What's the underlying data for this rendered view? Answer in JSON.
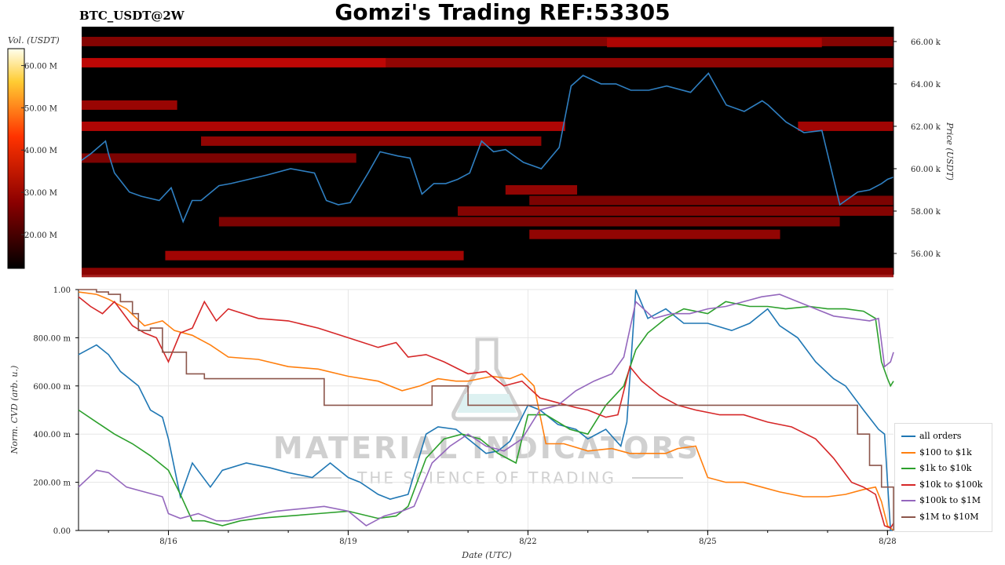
{
  "title": "Gomzi's Trading REF:53305",
  "pair_label": "BTC_USDT@2W",
  "watermark": {
    "brand": "MATERIAL INDICATORS",
    "tagline": "THE SCIENCE OF TRADING",
    "icon": "flask-icon"
  },
  "chart_data": [
    {
      "type": "heatmap",
      "name": "orderbook-liquidity",
      "colorbar": {
        "label": "Vol. (USDT)",
        "ticks": [
          "60.00 M",
          "50.00 M",
          "40.00 M",
          "30.00 M",
          "20.00 M"
        ],
        "tick_values": [
          60,
          50,
          40,
          30,
          20
        ],
        "range": [
          12,
          64
        ],
        "colormap": [
          "#000000",
          "#8b0000",
          "#ff3300",
          "#ffcc33",
          "#ffffee"
        ]
      },
      "ylabel": "Price (USDT)",
      "ylim": [
        55000,
        66700
      ],
      "yticks": [
        "66.00 k",
        "64.00 k",
        "62.00 k",
        "60.00 k",
        "58.00 k",
        "56.00 k"
      ],
      "ytick_values": [
        66000,
        64000,
        62000,
        60000,
        58000,
        56000
      ],
      "xlim_days": [
        14.5,
        28.1
      ],
      "liquidity_bands": [
        {
          "price": 66000,
          "x_from": 14.5,
          "x_to": 28.1,
          "intensity": 0.35
        },
        {
          "price": 65950,
          "x_from": 23.3,
          "x_to": 26.9,
          "intensity": 0.55
        },
        {
          "price": 65000,
          "x_from": 14.5,
          "x_to": 19.6,
          "intensity": 0.75
        },
        {
          "price": 65000,
          "x_from": 19.6,
          "x_to": 28.1,
          "intensity": 0.45
        },
        {
          "price": 63000,
          "x_from": 14.5,
          "x_to": 16.1,
          "intensity": 0.5
        },
        {
          "price": 62000,
          "x_from": 14.5,
          "x_to": 22.6,
          "intensity": 0.65
        },
        {
          "price": 62000,
          "x_from": 26.5,
          "x_to": 28.1,
          "intensity": 0.55
        },
        {
          "price": 61300,
          "x_from": 16.5,
          "x_to": 22.2,
          "intensity": 0.45
        },
        {
          "price": 60500,
          "x_from": 14.5,
          "x_to": 19.1,
          "intensity": 0.3
        },
        {
          "price": 59000,
          "x_from": 21.6,
          "x_to": 22.8,
          "intensity": 0.45
        },
        {
          "price": 58500,
          "x_from": 22.0,
          "x_to": 28.1,
          "intensity": 0.3
        },
        {
          "price": 58000,
          "x_from": 20.8,
          "x_to": 28.1,
          "intensity": 0.35
        },
        {
          "price": 57500,
          "x_from": 16.8,
          "x_to": 27.2,
          "intensity": 0.3
        },
        {
          "price": 56900,
          "x_from": 22.0,
          "x_to": 26.2,
          "intensity": 0.45
        },
        {
          "price": 55900,
          "x_from": 15.9,
          "x_to": 20.9,
          "intensity": 0.55
        },
        {
          "price": 55100,
          "x_from": 14.5,
          "x_to": 28.1,
          "intensity": 0.4
        }
      ],
      "price_series": {
        "name": "BTC price",
        "color": "#2f7fc1",
        "x": [
          14.5,
          14.65,
          14.9,
          14.95,
          15.05,
          15.3,
          15.5,
          15.8,
          16.0,
          16.2,
          16.35,
          16.5,
          16.8,
          17.0,
          17.3,
          17.6,
          18.0,
          18.4,
          18.6,
          18.8,
          19.0,
          19.3,
          19.5,
          19.8,
          20.0,
          20.2,
          20.4,
          20.6,
          20.8,
          21.0,
          21.2,
          21.4,
          21.6,
          21.9,
          22.2,
          22.5,
          22.7,
          22.9,
          23.2,
          23.45,
          23.7,
          24.0,
          24.3,
          24.7,
          25.0,
          25.3,
          25.6,
          25.9,
          26.0,
          26.3,
          26.6,
          26.9,
          27.2,
          27.5,
          27.7,
          27.9,
          28.0,
          28.1
        ],
        "y": [
          60400,
          60700,
          61300,
          60700,
          59800,
          58900,
          58700,
          58500,
          59100,
          57500,
          58500,
          58500,
          59200,
          59300,
          59500,
          59700,
          60000,
          59800,
          58500,
          58300,
          58400,
          59800,
          60800,
          60600,
          60500,
          58800,
          59300,
          59300,
          59500,
          59800,
          61300,
          60800,
          60900,
          60300,
          60000,
          61000,
          63900,
          64400,
          64000,
          64000,
          63700,
          63700,
          63900,
          63600,
          64500,
          63000,
          62700,
          63200,
          63000,
          62200,
          61700,
          61800,
          58300,
          58900,
          59000,
          59300,
          59500,
          59600
        ]
      },
      "x_ticks": [
        "8/16",
        "8/19",
        "8/22",
        "8/25",
        "8/28"
      ],
      "x_tick_values": [
        16,
        19,
        22,
        25,
        28
      ]
    },
    {
      "type": "line",
      "name": "normalized-cvd",
      "xlabel": "Date (UTC)",
      "ylabel": "Norm. CVD (arb. u.)",
      "ylim": [
        0,
        1
      ],
      "xlim_days": [
        14.5,
        28.1
      ],
      "yticks": [
        "1.00",
        "800.00 m",
        "600.00 m",
        "400.00 m",
        "200.00 m",
        "0.00"
      ],
      "ytick_values": [
        1,
        0.8,
        0.6,
        0.4,
        0.2,
        0
      ],
      "x_ticks": [
        "8/16",
        "8/19",
        "8/22",
        "8/25",
        "8/28"
      ],
      "x_tick_values": [
        16,
        19,
        22,
        25,
        28
      ],
      "grid": true,
      "legend_position": "right",
      "series": [
        {
          "name": "all orders",
          "color": "#1f77b4",
          "step": false,
          "x": [
            14.5,
            14.8,
            15.0,
            15.2,
            15.5,
            15.7,
            15.9,
            16.0,
            16.2,
            16.4,
            16.7,
            16.9,
            17.3,
            17.7,
            18.0,
            18.4,
            18.7,
            19.0,
            19.2,
            19.5,
            19.7,
            20.0,
            20.3,
            20.5,
            20.8,
            21.0,
            21.3,
            21.5,
            21.7,
            22.0,
            22.2,
            22.5,
            22.8,
            23.0,
            23.3,
            23.55,
            23.65,
            23.8,
            24.0,
            24.3,
            24.6,
            25.0,
            25.4,
            25.7,
            26.0,
            26.2,
            26.5,
            26.8,
            27.1,
            27.3,
            27.6,
            27.85,
            27.95,
            28.05,
            28.1
          ],
          "y": [
            0.73,
            0.77,
            0.73,
            0.66,
            0.6,
            0.5,
            0.47,
            0.38,
            0.14,
            0.28,
            0.18,
            0.25,
            0.28,
            0.26,
            0.24,
            0.22,
            0.28,
            0.22,
            0.2,
            0.15,
            0.13,
            0.15,
            0.4,
            0.43,
            0.42,
            0.38,
            0.32,
            0.33,
            0.37,
            0.52,
            0.5,
            0.44,
            0.42,
            0.38,
            0.42,
            0.35,
            0.45,
            1.0,
            0.88,
            0.92,
            0.86,
            0.86,
            0.83,
            0.86,
            0.92,
            0.85,
            0.8,
            0.7,
            0.63,
            0.6,
            0.5,
            0.42,
            0.4,
            0.0,
            0.0
          ]
        },
        {
          "name": "$100 to $1k",
          "color": "#ff7f0e",
          "step": false,
          "x": [
            14.5,
            14.8,
            15.0,
            15.3,
            15.6,
            15.9,
            16.1,
            16.4,
            16.7,
            17.0,
            17.5,
            18.0,
            18.5,
            19.0,
            19.5,
            19.9,
            20.2,
            20.5,
            20.8,
            21.0,
            21.4,
            21.7,
            21.9,
            22.1,
            22.3,
            22.6,
            23.0,
            23.4,
            23.7,
            24.0,
            24.3,
            24.5,
            24.8,
            25.0,
            25.3,
            25.6,
            25.9,
            26.2,
            26.6,
            27.0,
            27.3,
            27.6,
            27.8,
            27.9,
            28.0,
            28.1
          ],
          "y": [
            0.99,
            0.98,
            0.96,
            0.92,
            0.85,
            0.87,
            0.83,
            0.81,
            0.77,
            0.72,
            0.71,
            0.68,
            0.67,
            0.64,
            0.62,
            0.58,
            0.6,
            0.63,
            0.62,
            0.62,
            0.64,
            0.63,
            0.65,
            0.6,
            0.36,
            0.36,
            0.33,
            0.34,
            0.32,
            0.32,
            0.32,
            0.34,
            0.35,
            0.22,
            0.2,
            0.2,
            0.18,
            0.16,
            0.14,
            0.14,
            0.15,
            0.17,
            0.18,
            0.12,
            0.02,
            0.0
          ]
        },
        {
          "name": "$1k to $10k",
          "color": "#2ca02c",
          "step": false,
          "x": [
            14.5,
            14.8,
            15.1,
            15.4,
            15.7,
            16.0,
            16.2,
            16.4,
            16.6,
            16.9,
            17.2,
            17.5,
            18.0,
            18.5,
            19.0,
            19.5,
            19.8,
            20.0,
            20.3,
            20.6,
            20.9,
            21.2,
            21.5,
            21.8,
            22.0,
            22.3,
            22.7,
            23.0,
            23.3,
            23.6,
            23.8,
            24.0,
            24.3,
            24.6,
            25.0,
            25.3,
            25.7,
            26.0,
            26.3,
            26.7,
            27.0,
            27.3,
            27.6,
            27.8,
            27.9,
            28.0,
            28.05,
            28.1
          ],
          "y": [
            0.5,
            0.45,
            0.4,
            0.36,
            0.31,
            0.25,
            0.15,
            0.04,
            0.04,
            0.02,
            0.04,
            0.05,
            0.06,
            0.07,
            0.08,
            0.05,
            0.06,
            0.1,
            0.3,
            0.38,
            0.4,
            0.38,
            0.32,
            0.28,
            0.48,
            0.48,
            0.42,
            0.4,
            0.52,
            0.6,
            0.75,
            0.82,
            0.88,
            0.92,
            0.9,
            0.95,
            0.93,
            0.93,
            0.92,
            0.93,
            0.92,
            0.92,
            0.91,
            0.88,
            0.7,
            0.63,
            0.6,
            0.62
          ]
        },
        {
          "name": "$10k to $100k",
          "color": "#d62728",
          "step": false,
          "x": [
            14.5,
            14.7,
            14.9,
            15.1,
            15.4,
            15.6,
            15.8,
            16.0,
            16.2,
            16.4,
            16.6,
            16.8,
            17.0,
            17.5,
            18.0,
            18.5,
            19.0,
            19.5,
            19.8,
            20.0,
            20.3,
            20.6,
            21.0,
            21.3,
            21.6,
            21.9,
            22.2,
            22.5,
            22.8,
            23.0,
            23.3,
            23.5,
            23.7,
            23.9,
            24.2,
            24.5,
            24.8,
            25.2,
            25.6,
            26.0,
            26.4,
            26.8,
            27.1,
            27.4,
            27.6,
            27.8,
            27.95,
            28.05,
            28.1
          ],
          "y": [
            0.97,
            0.93,
            0.9,
            0.95,
            0.85,
            0.82,
            0.8,
            0.7,
            0.82,
            0.84,
            0.95,
            0.87,
            0.92,
            0.88,
            0.87,
            0.84,
            0.8,
            0.76,
            0.78,
            0.72,
            0.73,
            0.7,
            0.65,
            0.66,
            0.6,
            0.62,
            0.55,
            0.53,
            0.51,
            0.5,
            0.47,
            0.48,
            0.68,
            0.62,
            0.56,
            0.52,
            0.5,
            0.48,
            0.48,
            0.45,
            0.43,
            0.38,
            0.3,
            0.2,
            0.18,
            0.15,
            0.02,
            0.01,
            0.03
          ]
        },
        {
          "name": "$100k to $1M",
          "color": "#9467bd",
          "step": false,
          "x": [
            14.5,
            14.8,
            15.0,
            15.3,
            15.6,
            15.9,
            16.0,
            16.2,
            16.5,
            16.8,
            17.0,
            17.4,
            17.8,
            18.2,
            18.6,
            19.0,
            19.3,
            19.6,
            19.9,
            20.1,
            20.4,
            20.7,
            21.0,
            21.3,
            21.6,
            21.9,
            22.2,
            22.5,
            22.8,
            23.1,
            23.4,
            23.6,
            23.8,
            24.1,
            24.4,
            24.7,
            25.0,
            25.3,
            25.6,
            25.9,
            26.2,
            26.5,
            26.8,
            27.1,
            27.4,
            27.7,
            27.85,
            27.95,
            28.05,
            28.1
          ],
          "y": [
            0.18,
            0.25,
            0.24,
            0.18,
            0.16,
            0.14,
            0.07,
            0.05,
            0.07,
            0.04,
            0.04,
            0.06,
            0.08,
            0.09,
            0.1,
            0.08,
            0.02,
            0.06,
            0.08,
            0.1,
            0.28,
            0.35,
            0.4,
            0.35,
            0.33,
            0.38,
            0.5,
            0.52,
            0.58,
            0.62,
            0.65,
            0.72,
            0.95,
            0.88,
            0.9,
            0.9,
            0.92,
            0.93,
            0.95,
            0.97,
            0.98,
            0.95,
            0.92,
            0.89,
            0.88,
            0.87,
            0.88,
            0.68,
            0.7,
            0.74
          ]
        },
        {
          "name": "$1M to $10M",
          "color": "#8c564b",
          "step": true,
          "x": [
            14.5,
            14.8,
            15.0,
            15.2,
            15.4,
            15.5,
            15.7,
            15.9,
            16.3,
            16.6,
            18.4,
            18.6,
            20.0,
            20.4,
            21.0,
            21.2,
            23.3,
            27.3,
            27.5,
            27.7,
            27.9,
            28.1
          ],
          "y": [
            1.0,
            0.99,
            0.98,
            0.95,
            0.9,
            0.83,
            0.84,
            0.74,
            0.65,
            0.63,
            0.63,
            0.52,
            0.52,
            0.6,
            0.52,
            0.52,
            0.52,
            0.52,
            0.4,
            0.27,
            0.18,
            0.0
          ]
        }
      ]
    }
  ]
}
